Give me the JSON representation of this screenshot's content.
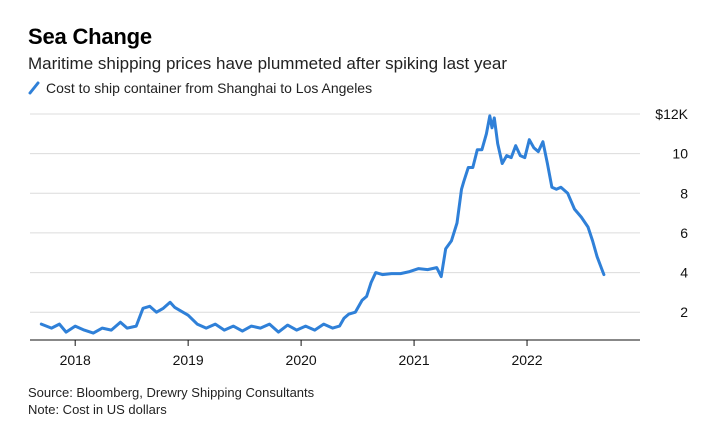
{
  "header": {
    "title": "Sea Change",
    "subtitle": "Maritime shipping prices have plummeted after spiking last year"
  },
  "footer": {
    "source": "Source: Bloomberg, Drewry Shipping Consultants",
    "note": "Note: Cost in US dollars"
  },
  "chart_data": {
    "type": "line",
    "title": "Sea Change",
    "subtitle": "Maritime shipping prices have plummeted after spiking last year",
    "xlabel": "",
    "ylabel": "",
    "x_ticks": [
      "2018",
      "2019",
      "2020",
      "2021",
      "2022"
    ],
    "y_ticks": [
      "2",
      "4",
      "6",
      "8",
      "10",
      "$12K"
    ],
    "y_tick_values": [
      2000,
      4000,
      6000,
      8000,
      10000,
      12000
    ],
    "xlim": [
      2017.6,
      2023.0
    ],
    "ylim": [
      600,
      12200
    ],
    "grid": true,
    "legend_position": "top-left",
    "series": [
      {
        "name": "Cost to ship container from Shanghai to Los Angeles",
        "color": "#2f80d8",
        "x": [
          2017.7,
          2017.79,
          2017.86,
          2017.92,
          2018.0,
          2018.08,
          2018.16,
          2018.24,
          2018.32,
          2018.4,
          2018.46,
          2018.54,
          2018.6,
          2018.66,
          2018.72,
          2018.78,
          2018.84,
          2018.88,
          2018.94,
          2019.0,
          2019.08,
          2019.16,
          2019.24,
          2019.32,
          2019.4,
          2019.48,
          2019.56,
          2019.64,
          2019.72,
          2019.8,
          2019.88,
          2019.96,
          2020.04,
          2020.12,
          2020.2,
          2020.28,
          2020.34,
          2020.38,
          2020.42,
          2020.48,
          2020.54,
          2020.58,
          2020.62,
          2020.66,
          2020.72,
          2020.8,
          2020.88,
          2020.96,
          2021.04,
          2021.12,
          2021.2,
          2021.24,
          2021.28,
          2021.33,
          2021.38,
          2021.42,
          2021.44,
          2021.48,
          2021.52,
          2021.56,
          2021.6,
          2021.64,
          2021.67,
          2021.69,
          2021.71,
          2021.74,
          2021.78,
          2021.82,
          2021.86,
          2021.9,
          2021.94,
          2021.98,
          2022.02,
          2022.06,
          2022.1,
          2022.14,
          2022.18,
          2022.22,
          2022.26,
          2022.3,
          2022.36,
          2022.42,
          2022.48,
          2022.54,
          2022.58,
          2022.62,
          2022.66,
          2022.68
        ],
        "values": [
          1400,
          1200,
          1400,
          1000,
          1300,
          1100,
          950,
          1200,
          1100,
          1500,
          1200,
          1300,
          2200,
          2300,
          2000,
          2200,
          2500,
          2250,
          2050,
          1850,
          1400,
          1200,
          1400,
          1100,
          1300,
          1050,
          1300,
          1200,
          1400,
          1000,
          1350,
          1100,
          1300,
          1100,
          1400,
          1200,
          1300,
          1700,
          1900,
          2000,
          2600,
          2800,
          3500,
          4000,
          3900,
          3950,
          3950,
          4050,
          4200,
          4150,
          4250,
          3800,
          5200,
          5600,
          6500,
          8200,
          8600,
          9300,
          9300,
          10200,
          10200,
          11000,
          11900,
          11300,
          11800,
          10500,
          9500,
          9900,
          9800,
          10400,
          9900,
          9800,
          10700,
          10300,
          10100,
          10600,
          9500,
          8300,
          8200,
          8300,
          8000,
          7200,
          6800,
          6300,
          5600,
          4800,
          4200,
          3900
        ]
      }
    ]
  }
}
